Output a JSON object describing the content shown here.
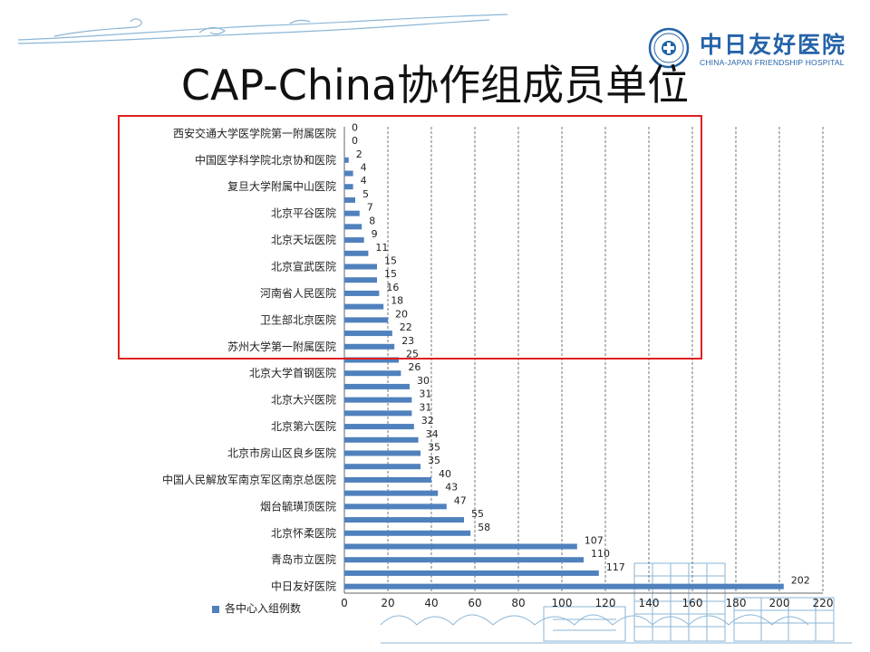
{
  "slide": {
    "title": "CAP-China协作组成员单位",
    "logo_cn": "中日友好医院",
    "logo_en": "CHINA-JAPAN FRIENDSHIP HOSPITAL"
  },
  "colors": {
    "bar": "#4f81bd",
    "highlight": "#e02020",
    "grid": "#555555",
    "brand": "#2463a8"
  },
  "chart_data": {
    "type": "bar",
    "orientation": "horizontal",
    "xlim": [
      0,
      220
    ],
    "xticks": [
      0,
      20,
      40,
      60,
      80,
      100,
      120,
      140,
      160,
      180,
      200,
      220
    ],
    "grid": "vertical-dashed",
    "legend_position": "bottom-left",
    "series": [
      {
        "name": "各中心入组例数"
      }
    ],
    "categories": [
      "西安交通大学医学院第一附属医院",
      "",
      "中国医学科学院北京协和医院",
      "",
      "复旦大学附属中山医院",
      "",
      "北京平谷医院",
      "",
      "北京天坛医院",
      "",
      "北京宣武医院",
      "",
      "河南省人民医院",
      "",
      "卫生部北京医院",
      "",
      "苏州大学第一附属医院",
      "",
      "北京大学首钢医院",
      "",
      "北京大兴医院",
      "",
      "北京第六医院",
      "",
      "北京市房山区良乡医院",
      "",
      "中国人民解放军南京军区南京总医院",
      "",
      "烟台毓璜顶医院",
      "",
      "北京怀柔医院",
      "",
      "青岛市立医院",
      "",
      "中日友好医院"
    ],
    "values": [
      0,
      0,
      2,
      4,
      4,
      5,
      7,
      8,
      9,
      11,
      15,
      15,
      16,
      18,
      20,
      22,
      23,
      25,
      26,
      30,
      31,
      31,
      32,
      34,
      35,
      35,
      40,
      43,
      47,
      55,
      58,
      107,
      110,
      117,
      202
    ],
    "value_labels": [
      "0",
      "0",
      "2",
      "4",
      "4",
      "5",
      "7",
      "8",
      "9",
      "11",
      "15",
      "15",
      "16",
      "18",
      "20",
      "22",
      "23",
      "25",
      "26",
      "30",
      "31",
      "31",
      "32",
      "34",
      "35",
      "35",
      "40",
      "43",
      "47",
      "55",
      "58",
      "107",
      "110",
      "117",
      "202"
    ]
  }
}
